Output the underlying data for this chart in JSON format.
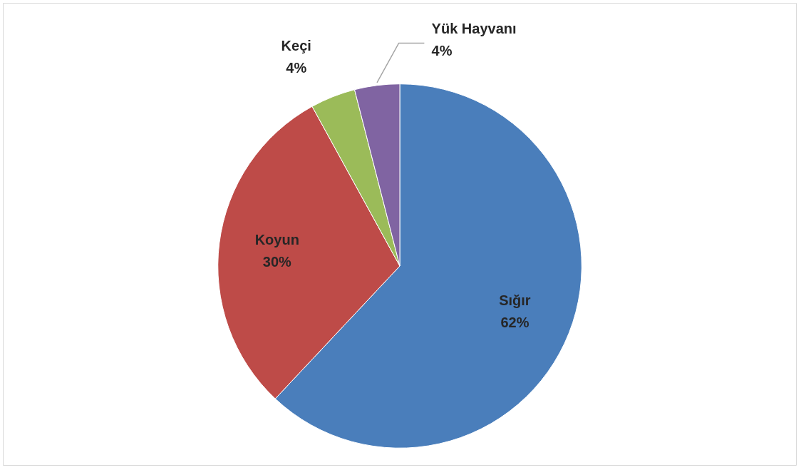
{
  "chart_data": {
    "type": "pie",
    "categories": [
      "Sığır",
      "Koyun",
      "Keçi",
      "Yük Hayvanı"
    ],
    "values": [
      62,
      30,
      4,
      4
    ],
    "colors": [
      "#4a7ebb",
      "#be4b48",
      "#9bbb59",
      "#8064a2"
    ],
    "value_labels": [
      "62%",
      "30%",
      "4%",
      "4%"
    ]
  }
}
